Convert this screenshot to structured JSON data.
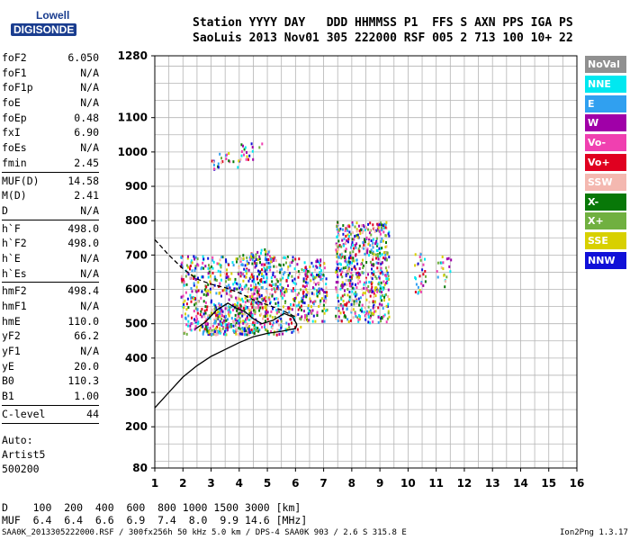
{
  "logo": {
    "line1": "Lowell",
    "line2": "DIGISONDE"
  },
  "header": {
    "row1": "Station YYYY DAY   DDD HHMMSS P1  FFS S AXN PPS IGA PS",
    "row2": "SaoLuis 2013 Nov01 305 222000 RSF 005 2 713 100 10+ 22"
  },
  "params": [
    {
      "name": "foF2",
      "value": "6.050"
    },
    {
      "name": "foF1",
      "value": "N/A"
    },
    {
      "name": "foF1p",
      "value": "N/A"
    },
    {
      "name": "foE",
      "value": "N/A"
    },
    {
      "name": "foEp",
      "value": "0.48"
    },
    {
      "name": "fxI",
      "value": "6.90"
    },
    {
      "name": "foEs",
      "value": "N/A"
    },
    {
      "name": "fmin",
      "value": "2.45"
    },
    {
      "sep": true
    },
    {
      "name": "MUF(D)",
      "value": "14.58"
    },
    {
      "name": "M(D)",
      "value": "2.41"
    },
    {
      "name": "D",
      "value": "N/A"
    },
    {
      "sep": true
    },
    {
      "name": "h`F",
      "value": "498.0"
    },
    {
      "name": "h`F2",
      "value": "498.0"
    },
    {
      "name": "h`E",
      "value": "N/A"
    },
    {
      "name": "h`Es",
      "value": "N/A"
    },
    {
      "sep": true
    },
    {
      "name": "hmF2",
      "value": "498.4"
    },
    {
      "name": "hmF1",
      "value": "N/A"
    },
    {
      "name": "hmE",
      "value": "110.0"
    },
    {
      "name": "yF2",
      "value": "66.2"
    },
    {
      "name": "yF1",
      "value": "N/A"
    },
    {
      "name": "yE",
      "value": "20.0"
    },
    {
      "name": "B0",
      "value": "110.3"
    },
    {
      "name": "B1",
      "value": "1.00"
    },
    {
      "sep": true
    },
    {
      "name": "C-level",
      "value": "44"
    },
    {
      "sep": true
    }
  ],
  "auto": {
    "line1": "Auto:",
    "line2": "Artist5",
    "line3": "500200"
  },
  "bottom": {
    "row1": "D    100  200  400  600  800 1000 1500 3000 [km]",
    "row2": "MUF  6.4  6.4  6.6  6.9  7.4  8.0  9.9 14.6 [MHz]"
  },
  "footer": {
    "left": "SAA0K_2013305222000.RSF / 300fx256h 50 kHz 5.0 km / DPS-4 SAA0K 903 / 2.6 S 315.8 E",
    "right": "Ion2Png 1.3.17"
  },
  "legend": [
    {
      "label": "NoVal",
      "color": "#909090",
      "text_color": "#ffffff"
    },
    {
      "label": "NNE",
      "color": "#00e8f0",
      "text_color": "#ffffff"
    },
    {
      "label": "E",
      "color": "#30a0f0",
      "text_color": "#ffffff"
    },
    {
      "label": "W",
      "color": "#a000a8",
      "text_color": "#ffffff"
    },
    {
      "label": "Vo-",
      "color": "#f040b0",
      "text_color": "#ffffff"
    },
    {
      "label": "Vo+",
      "color": "#e00020",
      "text_color": "#ffffff"
    },
    {
      "label": "SSW",
      "color": "#f4b8b0",
      "text_color": "#ffffff"
    },
    {
      "label": "X-",
      "color": "#087808",
      "text_color": "#ffffff"
    },
    {
      "label": "X+",
      "color": "#70b040",
      "text_color": "#ffffff"
    },
    {
      "label": "SSE",
      "color": "#d8d000",
      "text_color": "#ffffff"
    },
    {
      "label": "NNW",
      "color": "#1010d8",
      "text_color": "#ffffff"
    }
  ],
  "chart_data": {
    "type": "scatter",
    "title": "",
    "xlabel": "",
    "ylabel": "",
    "xlim": [
      1,
      16
    ],
    "ylim": [
      80,
      1280
    ],
    "x_ticks": [
      "1",
      "2",
      "3",
      "4",
      "5",
      "6",
      "7",
      "8",
      "9",
      "10",
      "11",
      "12",
      "13",
      "14",
      "15",
      "16"
    ],
    "y_ticks": [
      {
        "value": 80,
        "label": "80"
      },
      {
        "value": 200,
        "label": "200"
      },
      {
        "value": 300,
        "label": "300"
      },
      {
        "value": 400,
        "label": "400"
      },
      {
        "value": 500,
        "label": "500"
      },
      {
        "value": 600,
        "label": "600"
      },
      {
        "value": 700,
        "label": "700"
      },
      {
        "value": 800,
        "label": "800"
      },
      {
        "value": 900,
        "label": "900"
      },
      {
        "value": 1000,
        "label": "1000"
      },
      {
        "value": 1100,
        "label": "1100"
      },
      {
        "value": 1280,
        "label": "1280"
      }
    ],
    "grid": true,
    "echo_clusters": [
      {
        "xmin": 1.9,
        "xmax": 6.2,
        "ymin": 470,
        "ymax": 700,
        "density": 0.55
      },
      {
        "xmin": 2.6,
        "xmax": 4.6,
        "ymin": 470,
        "ymax": 560,
        "density": 0.9
      },
      {
        "xmin": 4.0,
        "xmax": 5.2,
        "ymin": 560,
        "ymax": 720,
        "density": 0.45
      },
      {
        "xmin": 6.2,
        "xmax": 7.1,
        "ymin": 510,
        "ymax": 690,
        "density": 0.75
      },
      {
        "xmin": 7.4,
        "xmax": 9.3,
        "ymin": 505,
        "ymax": 800,
        "density": 0.8
      },
      {
        "xmin": 3.0,
        "xmax": 4.0,
        "ymin": 950,
        "ymax": 1000,
        "density": 0.35
      },
      {
        "xmin": 4.0,
        "xmax": 4.8,
        "ymin": 980,
        "ymax": 1030,
        "density": 0.35
      },
      {
        "xmin": 10.2,
        "xmax": 10.6,
        "ymin": 590,
        "ymax": 720,
        "density": 0.4
      },
      {
        "xmin": 11.0,
        "xmax": 11.5,
        "ymin": 600,
        "ymax": 700,
        "density": 0.3
      }
    ],
    "profile_curve": {
      "x": [
        1.0,
        1.5,
        2.0,
        2.5,
        3.0,
        3.5,
        4.0,
        4.5,
        5.0,
        5.5,
        6.0,
        6.05
      ],
      "y": [
        255,
        300,
        345,
        378,
        405,
        425,
        445,
        462,
        472,
        478,
        486,
        498
      ]
    },
    "trace_curve": {
      "x": [
        2.45,
        2.8,
        3.2,
        3.6,
        3.9,
        4.2,
        4.5,
        4.8,
        5.2,
        5.6,
        5.9,
        6.05
      ],
      "y": [
        485,
        505,
        540,
        560,
        545,
        535,
        515,
        500,
        510,
        530,
        520,
        498
      ]
    },
    "dashed_curve": {
      "x": [
        1.0,
        1.5,
        2.0,
        2.5,
        3.0,
        3.5,
        4.0,
        4.5,
        5.0,
        5.5,
        6.0
      ],
      "y": [
        745,
        700,
        660,
        630,
        615,
        605,
        590,
        570,
        555,
        540,
        520
      ]
    }
  }
}
